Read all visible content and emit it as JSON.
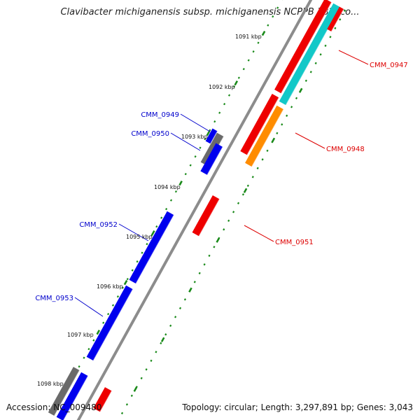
{
  "title": "Clavibacter michiganensis subsp. michiganensis NCPPB 382, co...",
  "footer": {
    "accession": "Accession: NC_009480",
    "genome_info": "Topology: circular; Length: 3,297,891 bp; Genes: 3,043"
  },
  "colors": {
    "backbone": "#8c8c8c",
    "tick": "#1a8a1a",
    "red": "#ee0000",
    "blue": "#0000ee",
    "cyan": "#12c8c8",
    "orange": "#ff8c00",
    "gray": "#6a6a6a",
    "label_red": "#dd0000",
    "label_blue": "#0000cc"
  },
  "kbp_labels": [
    "1091 kbp",
    "1092 kbp",
    "1093 kbp",
    "1094 kbp",
    "1095 kbp",
    "1096 kbp",
    "1097 kbp",
    "1098 kbp"
  ],
  "gene_labels": [
    {
      "name": "CMM_0947",
      "strand": "plus"
    },
    {
      "name": "CMM_0948",
      "strand": "plus"
    },
    {
      "name": "CMM_0951",
      "strand": "plus"
    },
    {
      "name": "CMM_0949",
      "strand": "minus"
    },
    {
      "name": "CMM_0950",
      "strand": "minus"
    },
    {
      "name": "CMM_0952",
      "strand": "minus"
    },
    {
      "name": "CMM_0953",
      "strand": "minus"
    }
  ]
}
